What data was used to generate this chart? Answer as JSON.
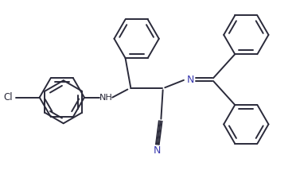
{
  "bg_color": "#ffffff",
  "line_color": "#2a2a3a",
  "label_color_N": "#3a3ab0",
  "label_color_text": "#2a2a3a",
  "line_width": 1.4,
  "figsize": [
    3.77,
    2.19
  ],
  "dpi": 100,
  "xlim": [
    0,
    10
  ],
  "ylim": [
    0,
    5.8
  ]
}
